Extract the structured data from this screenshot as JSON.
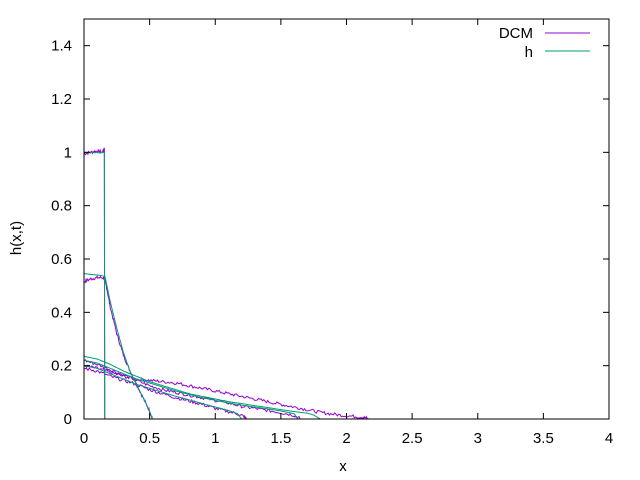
{
  "chart_data": {
    "type": "line",
    "title": "",
    "xlabel": "x",
    "ylabel": "h(x,t)",
    "xlim": [
      0,
      4
    ],
    "ylim": [
      0,
      1.5
    ],
    "x_ticks": [
      0,
      0.5,
      1,
      1.5,
      2,
      2.5,
      3,
      3.5,
      4
    ],
    "x_tick_labels": [
      "0",
      "0.5",
      "1",
      "1.5",
      "2",
      "2.5",
      "3",
      "3.5",
      "4"
    ],
    "y_ticks": [
      0,
      0.2,
      0.4,
      0.6,
      0.8,
      1,
      1.2,
      1.4
    ],
    "y_tick_labels": [
      "0",
      "0.2",
      "0.4",
      "0.6",
      "0.8",
      "1",
      "1.2",
      "1.4"
    ],
    "grid": false,
    "legend_position": "top-right",
    "series": [
      {
        "name": "DCM",
        "color": "#9400d3",
        "noise": true,
        "curves": [
          [
            [
              0,
              0.995
            ],
            [
              0.05,
              1.0
            ],
            [
              0.1,
              1.005
            ],
            [
              0.14,
              1.0
            ],
            [
              0.155,
              1.015
            ],
            [
              0.158,
              0.0
            ]
          ],
          [
            [
              0,
              0.515
            ],
            [
              0.05,
              0.525
            ],
            [
              0.1,
              0.53
            ],
            [
              0.15,
              0.53
            ],
            [
              0.17,
              0.5
            ],
            [
              0.2,
              0.42
            ],
            [
              0.25,
              0.32
            ],
            [
              0.3,
              0.24
            ],
            [
              0.35,
              0.18
            ],
            [
              0.4,
              0.13
            ],
            [
              0.45,
              0.08
            ],
            [
              0.5,
              0.03
            ],
            [
              0.52,
              0.0
            ]
          ],
          [
            [
              0,
              0.2
            ],
            [
              0.1,
              0.19
            ],
            [
              0.2,
              0.175
            ],
            [
              0.3,
              0.16
            ],
            [
              0.4,
              0.15
            ],
            [
              0.5,
              0.145
            ],
            [
              0.6,
              0.14
            ],
            [
              0.7,
              0.135
            ],
            [
              0.8,
              0.125
            ],
            [
              0.9,
              0.115
            ],
            [
              1.0,
              0.105
            ],
            [
              1.1,
              0.095
            ],
            [
              1.2,
              0.085
            ],
            [
              1.3,
              0.075
            ],
            [
              1.4,
              0.065
            ],
            [
              1.5,
              0.055
            ],
            [
              1.6,
              0.045
            ],
            [
              1.7,
              0.035
            ],
            [
              1.8,
              0.025
            ],
            [
              1.9,
              0.018
            ],
            [
              2.0,
              0.012
            ],
            [
              2.1,
              0.008
            ],
            [
              2.15,
              0.004
            ],
            [
              2.17,
              0.0
            ]
          ],
          [
            [
              0,
              0.22
            ],
            [
              0.1,
              0.205
            ],
            [
              0.2,
              0.185
            ],
            [
              0.3,
              0.165
            ],
            [
              0.4,
              0.145
            ],
            [
              0.5,
              0.125
            ],
            [
              0.6,
              0.11
            ],
            [
              0.7,
              0.1
            ],
            [
              0.8,
              0.09
            ],
            [
              0.9,
              0.08
            ],
            [
              1.0,
              0.07
            ],
            [
              1.1,
              0.06
            ],
            [
              1.2,
              0.048
            ],
            [
              1.3,
              0.04
            ],
            [
              1.4,
              0.032
            ],
            [
              1.5,
              0.024
            ],
            [
              1.6,
              0.014
            ],
            [
              1.65,
              0.0
            ]
          ],
          [
            [
              0,
              0.19
            ],
            [
              0.1,
              0.18
            ],
            [
              0.2,
              0.16
            ],
            [
              0.3,
              0.145
            ],
            [
              0.4,
              0.13
            ],
            [
              0.5,
              0.11
            ],
            [
              0.6,
              0.095
            ],
            [
              0.7,
              0.08
            ],
            [
              0.8,
              0.068
            ],
            [
              0.9,
              0.055
            ],
            [
              1.0,
              0.04
            ],
            [
              1.1,
              0.028
            ],
            [
              1.2,
              0.015
            ],
            [
              1.24,
              0.0
            ]
          ]
        ]
      },
      {
        "name": "h",
        "color": "#009e73",
        "noise": false,
        "curves": [
          [
            [
              0,
              1.0
            ],
            [
              0.1,
              1.0
            ],
            [
              0.155,
              1.0
            ],
            [
              0.158,
              0.0
            ]
          ],
          [
            [
              0,
              0.545
            ],
            [
              0.1,
              0.54
            ],
            [
              0.16,
              0.535
            ],
            [
              0.2,
              0.44
            ],
            [
              0.25,
              0.34
            ],
            [
              0.3,
              0.25
            ],
            [
              0.35,
              0.18
            ],
            [
              0.4,
              0.13
            ],
            [
              0.45,
              0.08
            ],
            [
              0.5,
              0.03
            ],
            [
              0.52,
              0.0
            ]
          ],
          [
            [
              0,
              0.235
            ],
            [
              0.1,
              0.225
            ],
            [
              0.2,
              0.205
            ],
            [
              0.3,
              0.18
            ],
            [
              0.4,
              0.16
            ],
            [
              0.5,
              0.14
            ],
            [
              0.6,
              0.125
            ],
            [
              0.7,
              0.11
            ],
            [
              0.8,
              0.095
            ],
            [
              0.9,
              0.085
            ],
            [
              1.0,
              0.075
            ],
            [
              1.1,
              0.065
            ],
            [
              1.2,
              0.058
            ],
            [
              1.3,
              0.05
            ],
            [
              1.4,
              0.043
            ],
            [
              1.5,
              0.035
            ],
            [
              1.6,
              0.028
            ],
            [
              1.7,
              0.022
            ],
            [
              1.75,
              0.015
            ],
            [
              1.8,
              0.0
            ]
          ],
          [
            [
              0,
              0.22
            ],
            [
              0.1,
              0.21
            ],
            [
              0.2,
              0.19
            ],
            [
              0.3,
              0.17
            ],
            [
              0.4,
              0.15
            ],
            [
              0.5,
              0.135
            ],
            [
              0.6,
              0.12
            ],
            [
              0.7,
              0.105
            ],
            [
              0.8,
              0.092
            ],
            [
              0.9,
              0.08
            ],
            [
              1.0,
              0.07
            ],
            [
              1.1,
              0.06
            ],
            [
              1.2,
              0.052
            ],
            [
              1.3,
              0.045
            ],
            [
              1.4,
              0.038
            ],
            [
              1.5,
              0.03
            ],
            [
              1.6,
              0.02
            ],
            [
              1.63,
              0.0
            ]
          ],
          [
            [
              0,
              0.2
            ],
            [
              0.1,
              0.19
            ],
            [
              0.2,
              0.17
            ],
            [
              0.3,
              0.15
            ],
            [
              0.4,
              0.13
            ],
            [
              0.5,
              0.115
            ],
            [
              0.6,
              0.1
            ],
            [
              0.7,
              0.085
            ],
            [
              0.8,
              0.072
            ],
            [
              0.9,
              0.058
            ],
            [
              1.0,
              0.045
            ],
            [
              1.1,
              0.032
            ],
            [
              1.17,
              0.02
            ],
            [
              1.2,
              0.0
            ]
          ]
        ]
      }
    ]
  }
}
